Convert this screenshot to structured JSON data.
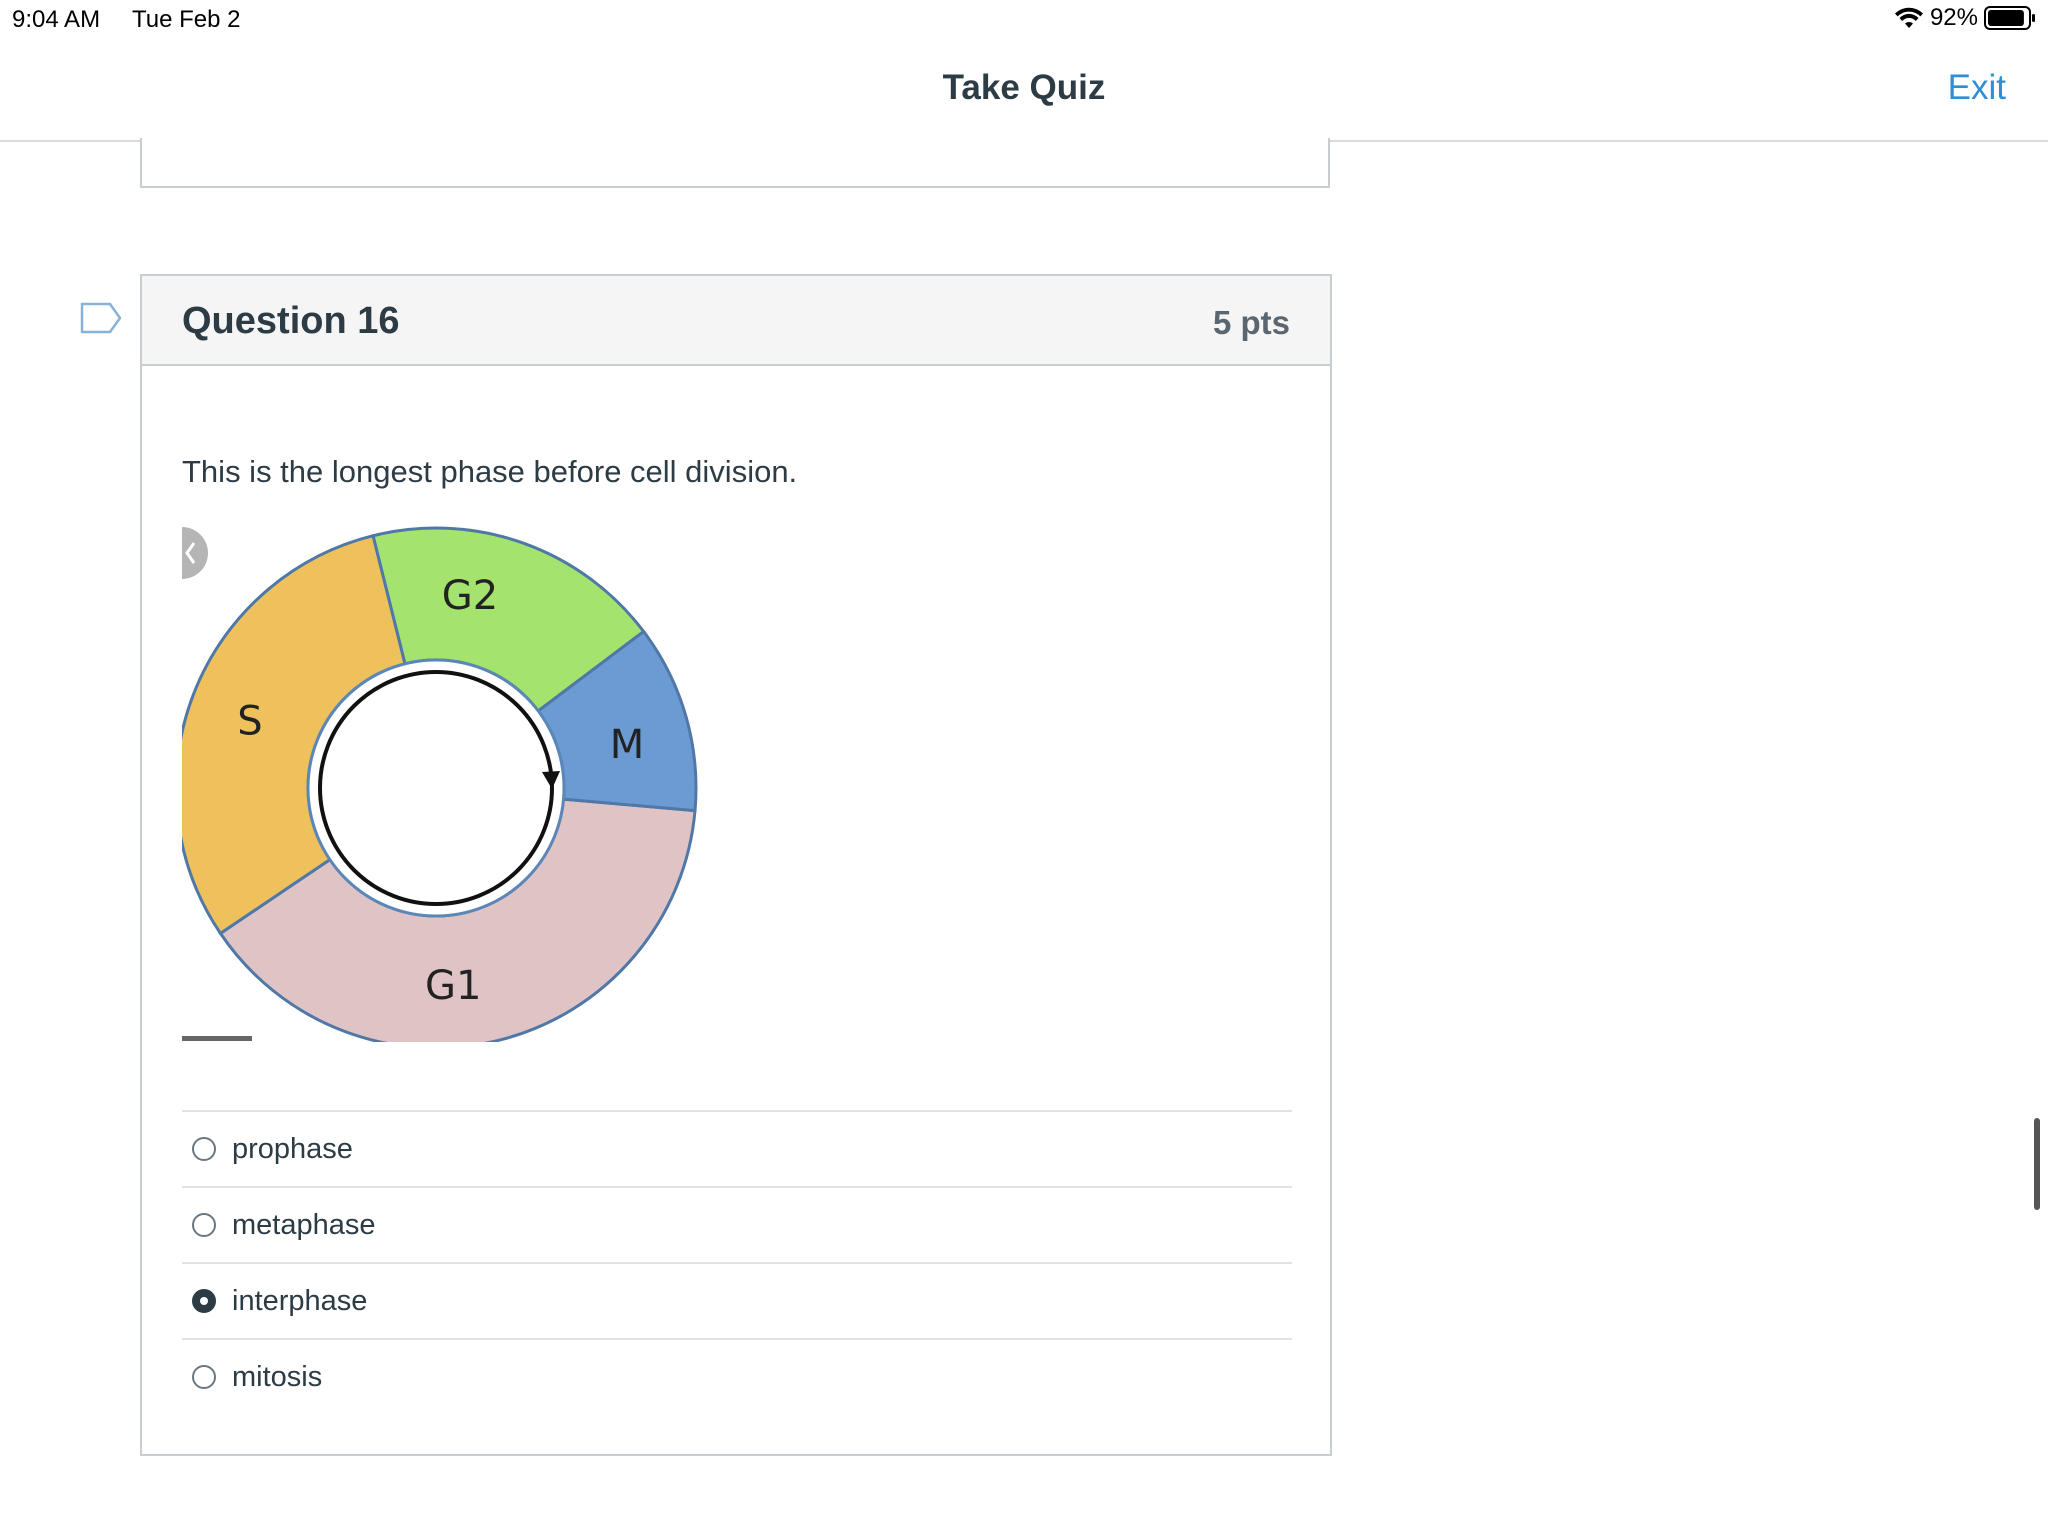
{
  "status_bar": {
    "time": "9:04 AM",
    "date": "Tue Feb 2",
    "battery_percent": "92%",
    "battery_level": 0.92,
    "icons": [
      "wifi-icon",
      "battery-icon"
    ]
  },
  "header": {
    "title": "Take Quiz",
    "exit_label": "Exit",
    "accent_color": "#2d8fd5"
  },
  "question": {
    "title": "Question 16",
    "points": "5 pts",
    "text": "This is the longest phase before cell division.",
    "diagram": {
      "phases": [
        {
          "label": "G1",
          "color": "#e0c4c5"
        },
        {
          "label": "S",
          "color": "#efc15c"
        },
        {
          "label": "G2",
          "color": "#a4e36d"
        },
        {
          "label": "M",
          "color": "#6b9bd2"
        }
      ]
    },
    "answers": [
      {
        "label": "prophase",
        "selected": false
      },
      {
        "label": "metaphase",
        "selected": false
      },
      {
        "label": "interphase",
        "selected": true
      },
      {
        "label": "mitosis",
        "selected": false
      }
    ]
  }
}
